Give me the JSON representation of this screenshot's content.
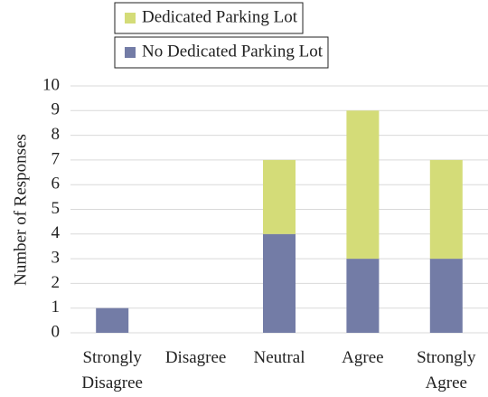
{
  "chart_data": {
    "type": "stacked_bar",
    "y_label": "Number of Responses",
    "categories": [
      "Strongly Disagree",
      "Disagree",
      "Neutral",
      "Agree",
      "Strongly Agree"
    ],
    "series": [
      {
        "name": "No Dedicated Parking Lot",
        "color": "#737ca6",
        "values": [
          1,
          0,
          4,
          3,
          3
        ]
      },
      {
        "name": "Dedicated Parking Lot",
        "color": "#d4dc78",
        "values": [
          0,
          0,
          3,
          6,
          4
        ]
      }
    ],
    "ylim": [
      0,
      10
    ],
    "yticks": [
      0,
      1,
      2,
      3,
      4,
      5,
      6,
      7,
      8,
      9,
      10
    ],
    "grid": true,
    "legend": "top"
  }
}
